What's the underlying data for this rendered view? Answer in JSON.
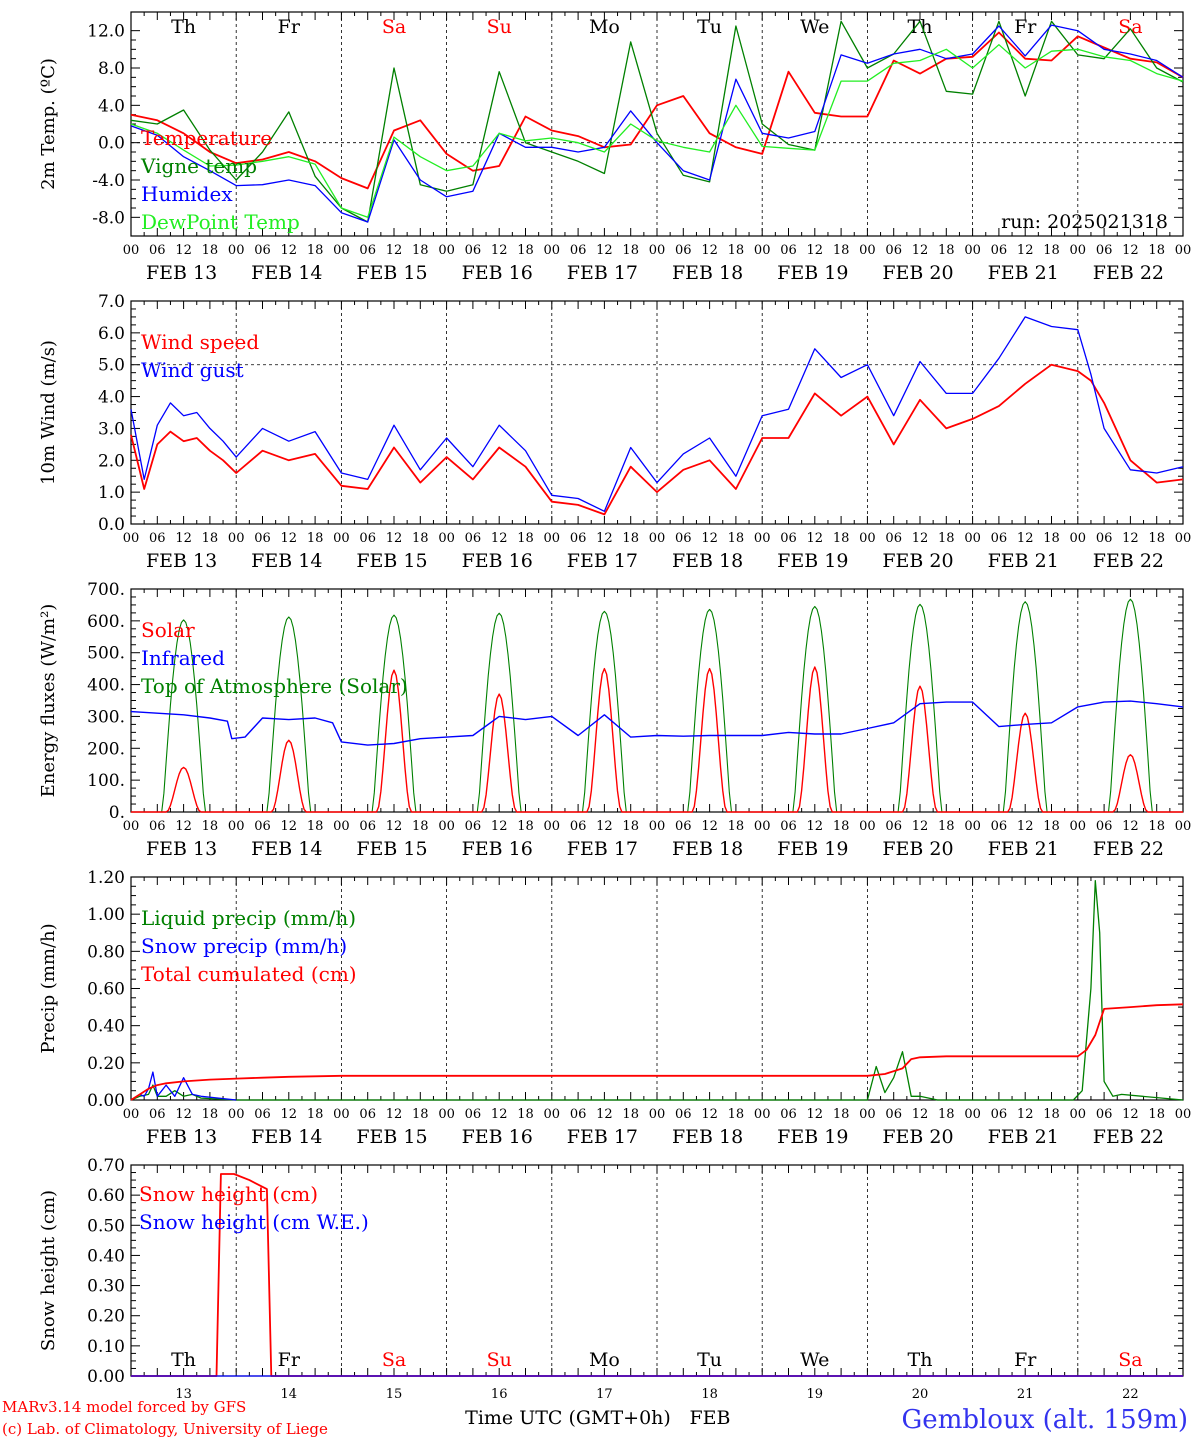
{
  "colors": {
    "red": "#ff0000",
    "green": "#008000",
    "blue": "#0000ff",
    "light_green": "#22ee22",
    "black": "#000000"
  },
  "days": [
    "Th",
    "Fr",
    "Sa",
    "Su",
    "Mo",
    "Tu",
    "We",
    "Th",
    "Fr",
    "Sa"
  ],
  "weekend_flags": [
    false,
    false,
    true,
    true,
    false,
    false,
    false,
    false,
    false,
    true
  ],
  "date_labels": [
    "FEB 13",
    "FEB 14",
    "FEB 15",
    "FEB 16",
    "FEB 17",
    "FEB 18",
    "FEB 19",
    "FEB 20",
    "FEB 21",
    "FEB 22"
  ],
  "day_numbers": [
    "13",
    "14",
    "15",
    "16",
    "17",
    "18",
    "19",
    "20",
    "21",
    "22"
  ],
  "hour_ticks": [
    "00",
    "06",
    "12",
    "18"
  ],
  "hour_end": "00",
  "run_label": "run: 2025021318",
  "footer": {
    "model": "MARv3.14 model forced by GFS",
    "credit": "(c) Lab. of Climatology, University of Liege",
    "xlabel": "Time UTC (GMT+0h)",
    "month": "FEB",
    "station": "Gembloux (alt. 159m)"
  },
  "chart_data": [
    {
      "id": "temp",
      "type": "line",
      "ylabel": "2m Temp. (ºC)",
      "ylim": [
        -10,
        14
      ],
      "yticks": [
        -8,
        -4,
        0,
        4,
        8,
        12
      ],
      "ytick_labels": [
        "-8.0",
        "-4.0",
        "0.0",
        "4.0",
        "8.0",
        "12.0"
      ],
      "ref_line": 0,
      "legend": [
        "Temperature",
        "Vigne temp",
        "Humidex",
        "DewPoint Temp"
      ],
      "series": [
        {
          "name": "Temperature",
          "color": "#ff0000",
          "x": [
            0,
            6,
            12,
            18,
            24,
            30,
            36,
            42,
            48,
            54,
            60,
            66,
            72,
            78,
            84,
            90,
            96,
            102,
            108,
            114,
            120,
            126,
            132,
            138,
            144,
            150,
            156,
            162,
            168,
            174,
            180,
            186,
            192,
            198,
            204,
            210,
            216,
            222,
            228,
            234,
            240
          ],
          "y": [
            3.0,
            2.4,
            1.0,
            -1.0,
            -2.2,
            -1.8,
            -1.0,
            -2.0,
            -3.8,
            -4.9,
            1.3,
            2.4,
            -1.2,
            -3.0,
            -2.5,
            2.8,
            1.3,
            0.7,
            -0.5,
            -0.2,
            4.0,
            5.0,
            1.0,
            -0.5,
            -1.2,
            7.6,
            3.2,
            2.8,
            2.8,
            8.8,
            7.4,
            9.0,
            9.2,
            11.8,
            9.0,
            8.8,
            11.4,
            10.2,
            9.0,
            8.6,
            7.0
          ]
        },
        {
          "name": "Vigne temp",
          "color": "#008000",
          "x": [
            0,
            6,
            12,
            18,
            24,
            30,
            36,
            42,
            48,
            54,
            60,
            66,
            72,
            78,
            84,
            90,
            96,
            102,
            108,
            114,
            120,
            126,
            132,
            138,
            144,
            150,
            156,
            162,
            168,
            174,
            180,
            186,
            192,
            198,
            204,
            210,
            216,
            222,
            228,
            234,
            240
          ],
          "y": [
            2.4,
            2.0,
            3.5,
            -0.8,
            -4.0,
            -1.0,
            3.3,
            -3.6,
            -7.0,
            -8.5,
            8.0,
            -4.5,
            -5.2,
            -4.5,
            7.6,
            0.0,
            -1.0,
            -2.0,
            -3.3,
            10.8,
            1.0,
            -3.5,
            -4.2,
            12.5,
            2.0,
            -0.2,
            -0.8,
            13.0,
            8.0,
            9.5,
            13.0,
            5.5,
            5.2,
            13.0,
            5.0,
            13.0,
            9.4,
            9.0,
            12.2,
            8.0,
            6.5
          ]
        },
        {
          "name": "Humidex",
          "color": "#0000ff",
          "x": [
            0,
            6,
            12,
            18,
            24,
            30,
            36,
            42,
            48,
            54,
            60,
            66,
            72,
            78,
            84,
            90,
            96,
            102,
            108,
            114,
            120,
            126,
            132,
            138,
            144,
            150,
            156,
            162,
            168,
            174,
            180,
            186,
            192,
            198,
            204,
            210,
            216,
            222,
            228,
            234,
            240
          ],
          "y": [
            1.8,
            0.8,
            -1.5,
            -3.0,
            -4.6,
            -4.5,
            -4.0,
            -4.6,
            -7.5,
            -8.5,
            0.3,
            -4.0,
            -5.8,
            -5.2,
            1.0,
            -0.5,
            -0.5,
            -1.0,
            -0.5,
            3.4,
            0.0,
            -3.0,
            -4.0,
            6.8,
            1.0,
            0.5,
            1.2,
            9.4,
            8.5,
            9.5,
            10.0,
            9.0,
            9.5,
            12.5,
            9.3,
            12.6,
            12.0,
            10.0,
            9.5,
            8.8,
            7.0
          ]
        },
        {
          "name": "DewPoint Temp",
          "color": "#22ee22",
          "x": [
            0,
            6,
            12,
            18,
            24,
            30,
            36,
            42,
            48,
            54,
            60,
            66,
            72,
            78,
            84,
            90,
            96,
            102,
            108,
            114,
            120,
            126,
            132,
            138,
            144,
            150,
            156,
            162,
            168,
            174,
            180,
            186,
            192,
            198,
            204,
            210,
            216,
            222,
            228,
            234,
            240
          ],
          "y": [
            2.0,
            1.0,
            -0.8,
            -2.5,
            -2.4,
            -2.0,
            -1.5,
            -2.3,
            -7.0,
            -8.0,
            0.6,
            -1.5,
            -3.0,
            -2.5,
            1.0,
            0.2,
            0.5,
            0.0,
            -1.0,
            2.0,
            0.2,
            -0.5,
            -1.0,
            4.0,
            -0.4,
            -0.6,
            -0.8,
            6.6,
            6.6,
            8.5,
            8.8,
            10.0,
            8.0,
            10.5,
            8.0,
            9.8,
            10.0,
            9.2,
            8.8,
            7.4,
            6.6
          ]
        }
      ]
    },
    {
      "id": "wind",
      "type": "line",
      "ylabel": "10m Wind (m/s)",
      "ylim": [
        0,
        7
      ],
      "yticks": [
        0,
        1,
        2,
        3,
        4,
        5,
        6,
        7
      ],
      "ytick_labels": [
        "0.0",
        "1.0",
        "2.0",
        "3.0",
        "4.0",
        "5.0",
        "6.0",
        "7.0"
      ],
      "ref_line": 5,
      "legend": [
        "Wind speed",
        "Wind gust"
      ],
      "series": [
        {
          "name": "Wind speed",
          "color": "#ff0000",
          "x": [
            0,
            3,
            6,
            9,
            12,
            15,
            18,
            21,
            24,
            30,
            36,
            42,
            48,
            54,
            60,
            66,
            72,
            78,
            84,
            90,
            96,
            102,
            108,
            114,
            120,
            126,
            132,
            138,
            144,
            150,
            156,
            162,
            168,
            174,
            180,
            186,
            192,
            198,
            204,
            210,
            216,
            219,
            222,
            228,
            234,
            240
          ],
          "y": [
            2.8,
            1.1,
            2.5,
            2.9,
            2.6,
            2.7,
            2.3,
            2.0,
            1.6,
            2.3,
            2.0,
            2.2,
            1.2,
            1.1,
            2.4,
            1.3,
            2.1,
            1.4,
            2.4,
            1.8,
            0.7,
            0.6,
            0.3,
            1.8,
            1.0,
            1.7,
            2.0,
            1.1,
            2.7,
            2.7,
            4.1,
            3.4,
            4.0,
            2.5,
            3.9,
            3.0,
            3.3,
            3.7,
            4.4,
            5.0,
            4.8,
            4.5,
            3.8,
            2.0,
            1.3,
            1.4
          ]
        },
        {
          "name": "Wind gust",
          "color": "#0000ff",
          "x": [
            0,
            3,
            6,
            9,
            12,
            15,
            18,
            21,
            24,
            30,
            36,
            42,
            48,
            54,
            60,
            66,
            72,
            78,
            84,
            90,
            96,
            102,
            108,
            114,
            120,
            126,
            132,
            138,
            144,
            150,
            156,
            162,
            168,
            174,
            180,
            186,
            192,
            198,
            204,
            210,
            216,
            219,
            222,
            228,
            234,
            240
          ],
          "y": [
            3.6,
            1.4,
            3.1,
            3.8,
            3.4,
            3.5,
            3.0,
            2.6,
            2.1,
            3.0,
            2.6,
            2.9,
            1.6,
            1.4,
            3.1,
            1.7,
            2.7,
            1.8,
            3.1,
            2.3,
            0.9,
            0.8,
            0.4,
            2.4,
            1.3,
            2.2,
            2.7,
            1.5,
            3.4,
            3.6,
            5.5,
            4.6,
            5.0,
            3.4,
            5.1,
            4.1,
            4.1,
            5.2,
            6.5,
            6.2,
            6.1,
            4.7,
            3.0,
            1.7,
            1.6,
            1.8
          ]
        }
      ]
    },
    {
      "id": "energy",
      "type": "line",
      "ylabel": "Energy fluxes (W/m²)",
      "ylim": [
        0,
        700
      ],
      "yticks": [
        0,
        100,
        200,
        300,
        400,
        500,
        600,
        700
      ],
      "ytick_labels": [
        "0.",
        "100.",
        "200.",
        "300.",
        "400.",
        "500.",
        "600.",
        "700."
      ],
      "legend": [
        "Solar",
        "Infrared",
        "Top of Atmosphere (Solar)"
      ],
      "toa_peaks": [
        603,
        612,
        618,
        624,
        630,
        636,
        645,
        652,
        660,
        668
      ],
      "solar_peaks": [
        140,
        225,
        445,
        370,
        450,
        450,
        455,
        395,
        310,
        180
      ],
      "series": [
        {
          "name": "Solar",
          "color": "#ff0000"
        },
        {
          "name": "Infrared",
          "color": "#0000ff",
          "x": [
            0,
            6,
            12,
            18,
            22,
            23,
            26,
            30,
            36,
            42,
            46,
            48,
            54,
            60,
            66,
            72,
            78,
            84,
            90,
            96,
            102,
            108,
            114,
            120,
            126,
            132,
            138,
            144,
            150,
            156,
            162,
            168,
            174,
            180,
            186,
            192,
            198,
            204,
            210,
            216,
            222,
            228,
            234,
            240
          ],
          "y": [
            315,
            310,
            305,
            295,
            285,
            230,
            235,
            295,
            290,
            295,
            280,
            220,
            210,
            215,
            230,
            235,
            240,
            300,
            290,
            300,
            240,
            305,
            235,
            240,
            238,
            240,
            240,
            240,
            250,
            245,
            245,
            262,
            280,
            340,
            345,
            345,
            268,
            275,
            280,
            330,
            345,
            348,
            340,
            330
          ]
        },
        {
          "name": "Top of Atmosphere (Solar)",
          "color": "#008000"
        }
      ]
    },
    {
      "id": "precip",
      "type": "line",
      "ylabel": "Precip (mm/h)",
      "ylim": [
        0,
        1.2
      ],
      "yticks": [
        0,
        0.2,
        0.4,
        0.6,
        0.8,
        1.0,
        1.2
      ],
      "ytick_labels": [
        "0.00",
        "0.20",
        "0.40",
        "0.60",
        "0.80",
        "1.00",
        "1.20"
      ],
      "legend": [
        "Liquid precip (mm/h)",
        "Snow precip (mm/h)",
        "Total cumulated (cm)"
      ],
      "series": [
        {
          "name": "Liquid precip (mm/h)",
          "color": "#008000",
          "x": [
            0,
            2,
            4,
            5,
            6,
            8,
            10,
            12,
            14,
            16,
            24,
            168,
            170,
            172,
            174,
            176,
            178,
            180,
            182,
            184,
            186,
            215,
            217,
            219,
            220,
            221,
            222,
            224,
            226,
            240
          ],
          "y": [
            0,
            0.02,
            0.03,
            0.08,
            0.02,
            0.02,
            0.05,
            0.02,
            0.03,
            0.01,
            0,
            0,
            0.18,
            0.04,
            0.12,
            0.26,
            0.02,
            0.02,
            0.01,
            0,
            0,
            0,
            0.05,
            0.6,
            1.18,
            0.9,
            0.1,
            0.02,
            0.03,
            0
          ]
        },
        {
          "name": "Snow precip (mm/h)",
          "color": "#0000ff",
          "x": [
            0,
            2,
            3,
            4,
            5,
            6,
            8,
            10,
            12,
            14,
            16,
            20,
            24
          ],
          "y": [
            0,
            0.03,
            0.02,
            0.06,
            0.15,
            0.02,
            0.08,
            0.02,
            0.12,
            0.03,
            0.02,
            0.01,
            0
          ]
        },
        {
          "name": "Total cumulated (cm)",
          "color": "#ff0000",
          "x": [
            0,
            2,
            4,
            6,
            8,
            12,
            18,
            24,
            30,
            36,
            48,
            60,
            72,
            96,
            120,
            144,
            168,
            172,
            176,
            178,
            180,
            186,
            192,
            204,
            216,
            218,
            220,
            222,
            228,
            234,
            240
          ],
          "y": [
            0,
            0.03,
            0.06,
            0.08,
            0.09,
            0.1,
            0.11,
            0.115,
            0.12,
            0.125,
            0.13,
            0.13,
            0.13,
            0.13,
            0.13,
            0.13,
            0.13,
            0.14,
            0.17,
            0.22,
            0.23,
            0.235,
            0.235,
            0.235,
            0.235,
            0.27,
            0.35,
            0.49,
            0.5,
            0.51,
            0.515
          ]
        }
      ]
    },
    {
      "id": "snow",
      "type": "line",
      "ylabel": "Snow height (cm)",
      "ylim": [
        0,
        0.7
      ],
      "yticks": [
        0,
        0.1,
        0.2,
        0.3,
        0.4,
        0.5,
        0.6,
        0.7
      ],
      "ytick_labels": [
        "0.00",
        "0.10",
        "0.20",
        "0.30",
        "0.40",
        "0.50",
        "0.60",
        "0.70"
      ],
      "legend": [
        "Snow height (cm)",
        "Snow height (cm W.E.)"
      ],
      "series": [
        {
          "name": "Snow height (cm)",
          "color": "#ff0000",
          "x": [
            0,
            19.5,
            20.5,
            23.5,
            27,
            31,
            32,
            240
          ],
          "y": [
            0,
            0,
            0.67,
            0.67,
            0.65,
            0.62,
            0,
            0
          ]
        },
        {
          "name": "Snow height (cm W.E.)",
          "color": "#0000ff",
          "x": [
            0,
            240
          ],
          "y": [
            0,
            0
          ]
        }
      ]
    }
  ]
}
